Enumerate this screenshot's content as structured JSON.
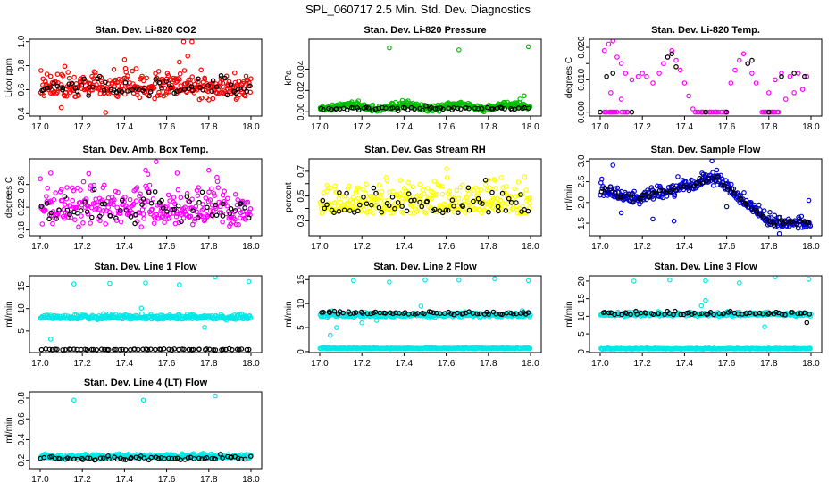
{
  "title": "SPL_060717  2.5 Min. Std. Dev. Diagnostics",
  "chart_data": [
    {
      "type": "scatter",
      "title": "Stan. Dev. Li-820 CO2",
      "ylabel": "Licor ppm",
      "xlim": [
        17.0,
        18.0
      ],
      "ylim": [
        0.38,
        1.02
      ],
      "xticks": [
        "17.0",
        "17.2",
        "17.4",
        "17.6",
        "17.8",
        "18.0"
      ],
      "yticks": [
        0.4,
        0.6,
        0.8,
        1.0
      ],
      "ytick_labels": [
        "0.4",
        "0.6",
        "0.8",
        "1.0"
      ],
      "series": [
        {
          "name": "main",
          "color": "#ff0000",
          "base": 0.62,
          "amp": 0.0,
          "noise": 0.07,
          "n": 320,
          "outliers": [
            [
              17.68,
              1.0
            ],
            [
              17.72,
              1.0
            ],
            [
              17.7,
              0.88
            ],
            [
              17.66,
              0.83
            ],
            [
              17.1,
              0.45
            ],
            [
              17.31,
              0.41
            ],
            [
              17.93,
              0.52
            ],
            [
              17.4,
              0.85
            ]
          ]
        },
        {
          "name": "secondary",
          "color": "#000000",
          "base": 0.62,
          "amp": 0.0,
          "noise": 0.05,
          "n": 65,
          "outliers": []
        }
      ]
    },
    {
      "type": "scatter",
      "title": "Stan. Dev. Li-820 Pressure",
      "ylabel": "kPa",
      "xlim": [
        17.0,
        18.0
      ],
      "ylim": [
        -0.004,
        0.068
      ],
      "xticks": [
        "17.0",
        "17.2",
        "17.4",
        "17.6",
        "17.8",
        "18.0"
      ],
      "yticks": [
        0.0,
        0.02,
        0.04
      ],
      "ytick_labels": [
        "0.00",
        "0.02",
        "0.04"
      ],
      "series": [
        {
          "name": "main",
          "color": "#00c000",
          "base": 0.005,
          "amp": 0.002,
          "noise": 0.0015,
          "n": 320,
          "outliers": [
            [
              17.33,
              0.06
            ],
            [
              17.66,
              0.058
            ],
            [
              17.99,
              0.061
            ],
            [
              17.95,
              0.012
            ],
            [
              17.97,
              0.015
            ]
          ]
        },
        {
          "name": "secondary",
          "color": "#000000",
          "base": 0.003,
          "amp": 0.0,
          "noise": 0.0008,
          "n": 65,
          "outliers": []
        }
      ]
    },
    {
      "type": "scatter",
      "title": "Stan. Dev. Li-820 Temp.",
      "ylabel": "degrees C",
      "xlim": [
        17.0,
        18.0
      ],
      "ylim": [
        -0.0012,
        0.0225
      ],
      "xticks": [
        "17.0",
        "17.2",
        "17.4",
        "17.6",
        "17.8",
        "18.0"
      ],
      "yticks": [
        0.0,
        0.005,
        0.01,
        0.015,
        0.02
      ],
      "ytick_labels": [
        "0.000",
        "",
        "0.010",
        "",
        "0.020"
      ],
      "series": [
        {
          "name": "main",
          "color": "#ff00ff",
          "base": 0.0,
          "amp": 0.0,
          "noise": 0.0,
          "n": 0,
          "outliers": [
            [
              17.02,
              0.019
            ],
            [
              17.04,
              0.021
            ],
            [
              17.06,
              0.022
            ],
            [
              17.08,
              0.017
            ],
            [
              17.1,
              0.015
            ],
            [
              17.12,
              0.012
            ],
            [
              17.15,
              0.01
            ],
            [
              17.18,
              0.011
            ],
            [
              17.2,
              0.012
            ],
            [
              17.22,
              0.011
            ],
            [
              17.25,
              0.009
            ],
            [
              17.28,
              0.012
            ],
            [
              17.3,
              0.015
            ],
            [
              17.32,
              0.017
            ],
            [
              17.34,
              0.019
            ],
            [
              17.36,
              0.016
            ],
            [
              17.38,
              0.013
            ],
            [
              17.4,
              0.009
            ],
            [
              17.42,
              0.005
            ],
            [
              17.44,
              0.001
            ],
            [
              17.62,
              0.009
            ],
            [
              17.64,
              0.013
            ],
            [
              17.66,
              0.016
            ],
            [
              17.68,
              0.018
            ],
            [
              17.7,
              0.015
            ],
            [
              17.72,
              0.012
            ],
            [
              17.74,
              0.009
            ],
            [
              17.8,
              0.006
            ],
            [
              17.83,
              0.01
            ],
            [
              17.86,
              0.012
            ],
            [
              17.9,
              0.011
            ],
            [
              17.94,
              0.012
            ],
            [
              17.98,
              0.011
            ],
            [
              17.05,
              0.006
            ],
            [
              17.1,
              0.004
            ],
            [
              17.88,
              0.004
            ],
            [
              17.92,
              0.006
            ],
            [
              17.96,
              0.007
            ]
          ]
        },
        {
          "name": "baseline",
          "color": "#ff00ff",
          "base": 0.0,
          "amp": 0.0,
          "noise": 0.0,
          "n": 0,
          "outliers": []
        },
        {
          "name": "secondary",
          "color": "#000000",
          "base": 0.0,
          "amp": 0.0,
          "noise": 0.0,
          "n": 0,
          "outliers": [
            [
              17.03,
              0.011
            ],
            [
              17.06,
              0.012
            ],
            [
              17.32,
              0.017
            ],
            [
              17.34,
              0.018
            ],
            [
              17.36,
              0.014
            ],
            [
              17.7,
              0.015
            ],
            [
              17.72,
              0.016
            ],
            [
              17.86,
              0.011
            ],
            [
              17.92,
              0.012
            ],
            [
              17.97,
              0.011
            ],
            [
              17.0,
              0.0
            ],
            [
              17.15,
              0.0
            ],
            [
              17.5,
              0.0
            ],
            [
              17.6,
              0.0
            ],
            [
              17.8,
              0.0
            ]
          ]
        }
      ]
    },
    {
      "type": "scatter",
      "title": "Stan. Dev. Amb. Box Temp.",
      "ylabel": "degrees C",
      "xlim": [
        17.0,
        18.0
      ],
      "ylim": [
        0.17,
        0.305
      ],
      "xticks": [
        "17.0",
        "17.2",
        "17.4",
        "17.6",
        "17.8",
        "18.0"
      ],
      "yticks": [
        0.18,
        0.22,
        0.26
      ],
      "ytick_labels": [
        "0.18",
        "0.22",
        "0.26"
      ],
      "series": [
        {
          "name": "main",
          "color": "#ff00ff",
          "base": 0.215,
          "amp": 0.0,
          "noise": 0.022,
          "n": 300,
          "outliers": [
            [
              17.55,
              0.3
            ],
            [
              17.5,
              0.285
            ],
            [
              17.65,
              0.28
            ],
            [
              17.8,
              0.285
            ],
            [
              17.05,
              0.28
            ]
          ]
        },
        {
          "name": "secondary",
          "color": "#000000",
          "base": 0.215,
          "amp": 0.0,
          "noise": 0.018,
          "n": 60,
          "outliers": []
        }
      ]
    },
    {
      "type": "scatter",
      "title": "Stan. Dev. Gas Stream RH",
      "ylabel": "percent",
      "xlim": [
        17.0,
        18.0
      ],
      "ylim": [
        0.18,
        0.8
      ],
      "xticks": [
        "17.0",
        "17.2",
        "17.4",
        "17.6",
        "17.8",
        "18.0"
      ],
      "yticks": [
        0.3,
        0.4,
        0.5,
        0.6,
        0.7
      ],
      "ytick_labels": [
        "0.3",
        "",
        "0.5",
        "",
        "0.7"
      ],
      "series": [
        {
          "name": "main",
          "color": "#ffff00",
          "base": 0.36,
          "amp": 0.0,
          "noise": 0.11,
          "n": 320,
          "outliers": []
        },
        {
          "name": "secondary",
          "color": "#000000",
          "base": 0.36,
          "amp": 0.0,
          "noise": 0.09,
          "n": 65,
          "outliers": []
        }
      ]
    },
    {
      "type": "scatter",
      "title": "Stan. Dev. Sample Flow",
      "ylabel": "ml/min",
      "xlim": [
        17.0,
        18.0
      ],
      "ylim": [
        1.2,
        3.05
      ],
      "xticks": [
        "17.0",
        "17.2",
        "17.4",
        "17.6",
        "17.8",
        "18.0"
      ],
      "yticks": [
        1.5,
        2.0,
        2.5,
        3.0
      ],
      "ytick_labels": [
        "1.5",
        "2.0",
        "2.5",
        "3.0"
      ],
      "series": [
        {
          "name": "main",
          "color": "#0000d0",
          "curve": "sample",
          "noise": 0.1,
          "n": 320,
          "outliers": [
            [
              17.06,
              2.9
            ],
            [
              17.53,
              3.0
            ],
            [
              17.1,
              1.75
            ],
            [
              17.25,
              1.6
            ],
            [
              17.35,
              1.55
            ],
            [
              17.6,
              1.9
            ],
            [
              17.85,
              1.25
            ],
            [
              17.99,
              2.05
            ]
          ]
        },
        {
          "name": "secondary",
          "color": "#000000",
          "curve": "sample",
          "noise": 0.05,
          "n": 65,
          "outliers": []
        }
      ]
    },
    {
      "type": "scatter",
      "title": "Stan. Dev. Line 1 Flow",
      "ylabel": "ml/min",
      "xlim": [
        17.0,
        18.0
      ],
      "ylim": [
        0.2,
        17.3
      ],
      "xticks": [
        "17.0",
        "17.2",
        "17.4",
        "17.6",
        "17.8",
        "18.0"
      ],
      "yticks": [
        5,
        10,
        15
      ],
      "ytick_labels": [
        "5",
        "10",
        "15"
      ],
      "series": [
        {
          "name": "main",
          "color": "#00e8e8",
          "base": 8.0,
          "amp": 0.0,
          "noise": 0.35,
          "n": 320,
          "outliers": [
            [
              17.16,
              15.5
            ],
            [
              17.33,
              15.6
            ],
            [
              17.5,
              15.7
            ],
            [
              17.66,
              15.3
            ],
            [
              17.83,
              17.0
            ],
            [
              17.99,
              16.0
            ],
            [
              17.05,
              3.2
            ],
            [
              17.48,
              10.1
            ],
            [
              17.78,
              5.8
            ]
          ]
        },
        {
          "name": "secondary",
          "color": "#000000",
          "base": 0.9,
          "amp": 0.0,
          "noise": 0.08,
          "n": 65,
          "outliers": []
        }
      ]
    },
    {
      "type": "scatter",
      "title": "Stan. Dev. Line 2 Flow",
      "ylabel": "ml/min",
      "xlim": [
        17.0,
        18.0
      ],
      "ylim": [
        -0.2,
        15.8
      ],
      "xticks": [
        "17.0",
        "17.2",
        "17.4",
        "17.6",
        "17.8",
        "18.0"
      ],
      "yticks": [
        0,
        5,
        10,
        15
      ],
      "ytick_labels": [
        "0",
        "5",
        "10",
        "15"
      ],
      "series": [
        {
          "name": "main",
          "color": "#00e8e8",
          "base": 7.6,
          "amp": 0.0,
          "noise": 0.3,
          "n": 320,
          "outliers": [
            [
              17.16,
              14.8
            ],
            [
              17.33,
              14.5
            ],
            [
              17.5,
              14.9
            ],
            [
              17.66,
              14.9
            ],
            [
              17.83,
              15.2
            ],
            [
              17.99,
              14.8
            ],
            [
              17.05,
              3.4
            ],
            [
              17.08,
              5.0
            ],
            [
              17.2,
              6.0
            ],
            [
              17.27,
              6.5
            ],
            [
              17.48,
              9.5
            ]
          ]
        },
        {
          "name": "low",
          "color": "#00e8e8",
          "base": 0.7,
          "amp": 0.0,
          "noise": 0.08,
          "n": 260,
          "outliers": []
        },
        {
          "name": "secondary",
          "color": "#000000",
          "base": 8.0,
          "amp": 0.0,
          "noise": 0.2,
          "n": 65,
          "outliers": []
        }
      ]
    },
    {
      "type": "scatter",
      "title": "Stan. Dev. Line 3 Flow",
      "ylabel": "ml/min",
      "xlim": [
        17.0,
        18.0
      ],
      "ylim": [
        -0.3,
        21.5
      ],
      "xticks": [
        "17.0",
        "17.2",
        "17.4",
        "17.6",
        "17.8",
        "18.0"
      ],
      "yticks": [
        0,
        5,
        10,
        15,
        20
      ],
      "ytick_labels": [
        "0",
        "5",
        "10",
        "15",
        "20"
      ],
      "series": [
        {
          "name": "main",
          "color": "#00e8e8",
          "base": 10.5,
          "amp": 0.0,
          "noise": 0.35,
          "n": 320,
          "outliers": [
            [
              17.16,
              20.0
            ],
            [
              17.33,
              20.3
            ],
            [
              17.5,
              20.1
            ],
            [
              17.66,
              19.5
            ],
            [
              17.83,
              21.2
            ],
            [
              17.99,
              20.5
            ],
            [
              17.5,
              14.5
            ],
            [
              17.48,
              13.0
            ],
            [
              17.78,
              7.0
            ]
          ]
        },
        {
          "name": "low",
          "color": "#00e8e8",
          "base": 0.8,
          "amp": 0.0,
          "noise": 0.1,
          "n": 260,
          "outliers": []
        },
        {
          "name": "secondary",
          "color": "#000000",
          "base": 10.8,
          "amp": 0.0,
          "noise": 0.3,
          "n": 65,
          "outliers": [
            [
              17.98,
              8.2
            ]
          ]
        }
      ]
    },
    {
      "type": "scatter",
      "title": "Stan. Dev. Line 4 (LT) Flow",
      "ylabel": "ml/min",
      "xlim": [
        17.0,
        18.0
      ],
      "ylim": [
        0.12,
        0.86
      ],
      "xticks": [
        "17.0",
        "17.2",
        "17.4",
        "17.6",
        "17.8",
        "18.0"
      ],
      "yticks": [
        0.2,
        0.4,
        0.6,
        0.8
      ],
      "ytick_labels": [
        "0.2",
        "0.4",
        "0.6",
        "0.8"
      ],
      "series": [
        {
          "name": "main",
          "color": "#00e8e8",
          "base": 0.235,
          "amp": 0.0,
          "noise": 0.014,
          "n": 320,
          "outliers": [
            [
              17.16,
              0.78
            ],
            [
              17.49,
              0.78
            ],
            [
              17.83,
              0.82
            ]
          ]
        },
        {
          "name": "secondary",
          "color": "#000000",
          "base": 0.22,
          "amp": 0.0,
          "noise": 0.015,
          "n": 65,
          "outliers": []
        }
      ]
    }
  ]
}
